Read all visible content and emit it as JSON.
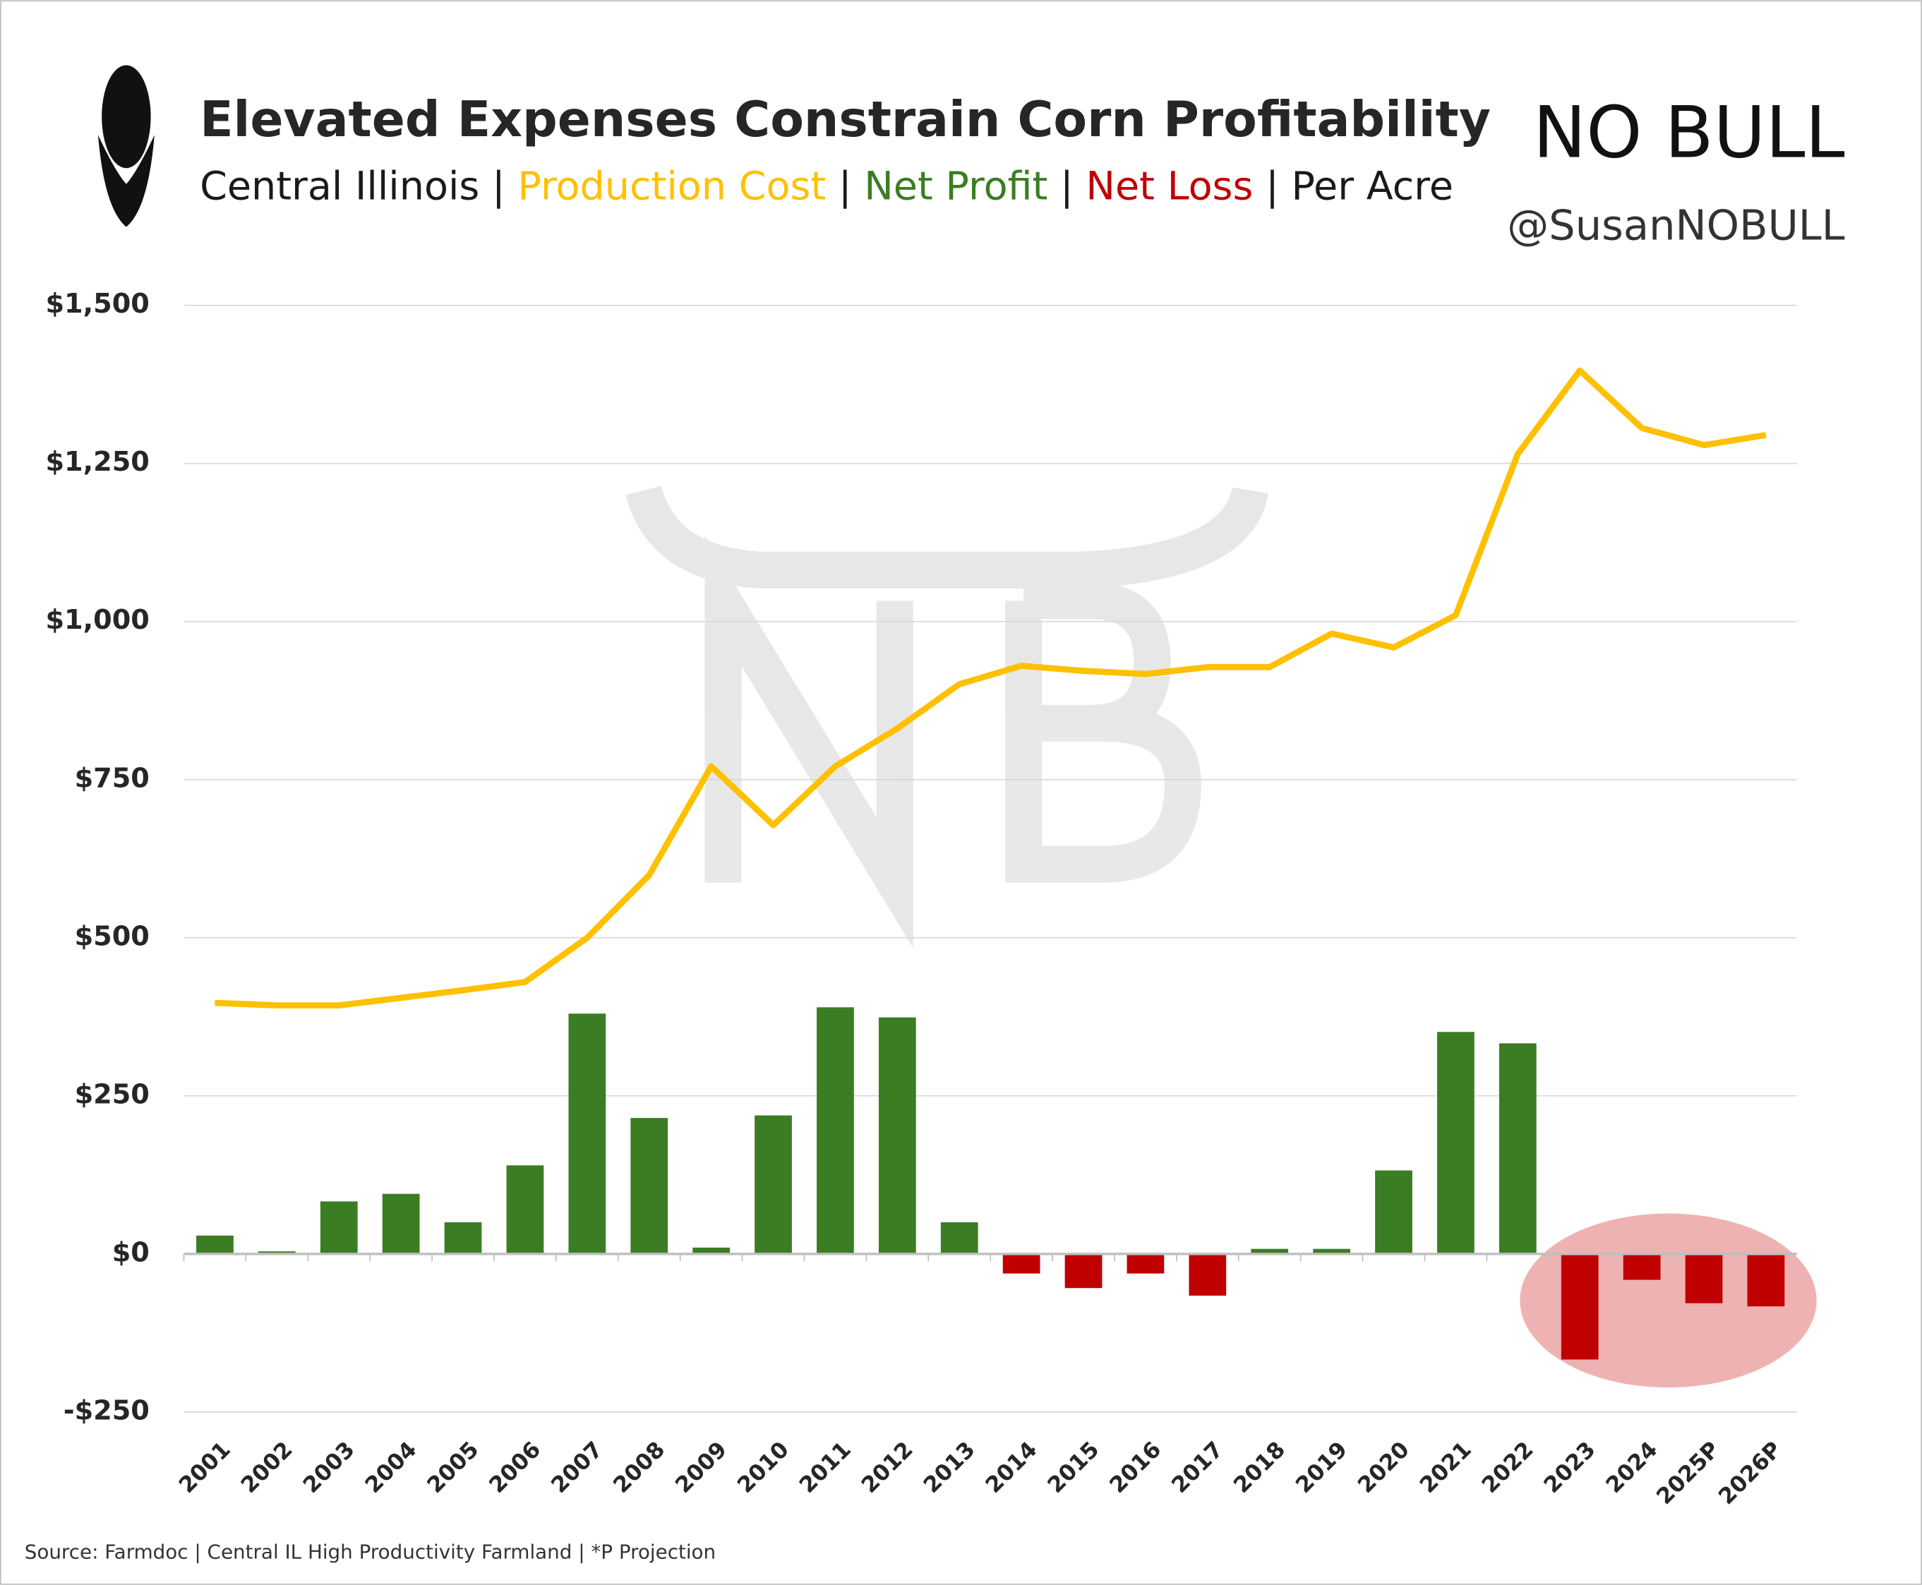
{
  "chart_data": {
    "type": "bar_line",
    "title": "Elevated Expenses Constrain Corn Profitability",
    "subtitle": [
      {
        "text": "Central Illinois",
        "color": "#1a1a1a"
      },
      {
        "text": "Production Cost",
        "color": "#ffc000"
      },
      {
        "text": "Net Profit",
        "color": "#3a7d22"
      },
      {
        "text": "Net Loss",
        "color": "#c00000"
      },
      {
        "text": "Per Acre",
        "color": "#1a1a1a"
      }
    ],
    "subtitle_separator": "|",
    "brand": "NO BULL",
    "handle": "@SusanNOBULL",
    "source": "Source: Farmdoc | Central IL High Productivity Farmland | *P Projection",
    "categories": [
      "2001",
      "2002",
      "2003",
      "2004",
      "2005",
      "2006",
      "2007",
      "2008",
      "2009",
      "2010",
      "2011",
      "2012",
      "2013",
      "2014",
      "2015",
      "2016",
      "2017",
      "2018",
      "2019",
      "2020",
      "2021",
      "2022",
      "2023",
      "2024",
      "2025P",
      "2026P"
    ],
    "series": [
      {
        "name": "Net Profit",
        "kind": "bar",
        "color": "#3a7d22",
        "negative_color": "#c00000",
        "values": [
          29,
          4,
          83,
          95,
          50,
          140,
          380,
          215,
          10,
          219,
          390,
          374,
          50,
          -31,
          -54,
          -31,
          -66,
          8,
          8,
          132,
          351,
          333,
          -167,
          -41,
          -78,
          -83
        ]
      },
      {
        "name": "Production Cost",
        "kind": "line",
        "color": "#ffc000",
        "values": [
          397,
          393,
          393,
          405,
          417,
          430,
          500,
          599,
          771,
          678,
          771,
          831,
          901,
          930,
          922,
          917,
          928,
          928,
          981,
          959,
          1010,
          1265,
          1397,
          1306,
          1279,
          1295
        ]
      }
    ],
    "ylim": [
      -250,
      1500
    ],
    "yticks": [
      {
        "value": -250,
        "label": "-$250"
      },
      {
        "value": 0,
        "label": "$0"
      },
      {
        "value": 250,
        "label": "$250"
      },
      {
        "value": 500,
        "label": "$500"
      },
      {
        "value": 750,
        "label": "$750"
      },
      {
        "value": 1000,
        "label": "$1,000"
      },
      {
        "value": 1250,
        "label": "$1,250"
      },
      {
        "value": 1500,
        "label": "$1,500"
      }
    ],
    "grid": true
  }
}
